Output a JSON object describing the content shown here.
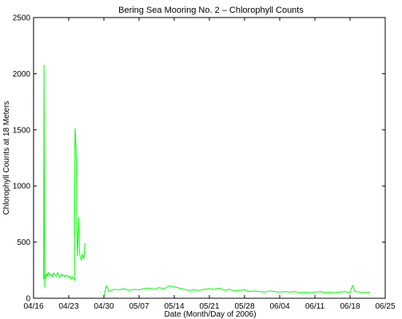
{
  "chart_data": {
    "type": "line",
    "title": "Bering Sea Mooring No. 2 – Chlorophyll Counts",
    "xlabel": "Date (Month/Day of 2006)",
    "ylabel": "Chlorophyll Counts at 18 Meters",
    "xlim": [
      "2006-04-16",
      "2006-06-25"
    ],
    "ylim": [
      0,
      2500
    ],
    "x_ticks": [
      "04/16",
      "04/23",
      "04/30",
      "05/07",
      "05/14",
      "05/21",
      "05/28",
      "06/04",
      "06/11",
      "06/18",
      "06/25"
    ],
    "y_ticks": [
      0,
      500,
      1000,
      1500,
      2000,
      2500
    ],
    "grid": false,
    "line_color": "#00ff00",
    "series": [
      {
        "segments": [
          {
            "x": [
              "2006-04-18T00:00",
              "2006-04-18T02:00",
              "2006-04-18T03:00",
              "2006-04-18T05:00",
              "2006-04-18T06:00",
              "2006-04-18T08:00",
              "2006-04-18T10:00",
              "2006-04-18T12:00",
              "2006-04-18T15:00",
              "2006-04-18T18:00",
              "2006-04-19T00:00",
              "2006-04-19T06:00",
              "2006-04-19T12:00",
              "2006-04-19T18:00",
              "2006-04-20T00:00",
              "2006-04-20T06:00",
              "2006-04-20T12:00",
              "2006-04-20T18:00",
              "2006-04-21T00:00",
              "2006-04-21T06:00",
              "2006-04-21T12:00",
              "2006-04-21T18:00",
              "2006-04-22T00:00",
              "2006-04-22T06:00",
              "2006-04-22T12:00",
              "2006-04-22T18:00",
              "2006-04-23T00:00",
              "2006-04-23T06:00",
              "2006-04-23T12:00",
              "2006-04-23T18:00",
              "2006-04-24T00:00",
              "2006-04-24T03:00",
              "2006-04-24T06:00",
              "2006-04-24T09:00",
              "2006-04-24T12:00",
              "2006-04-24T15:00",
              "2006-04-24T18:00",
              "2006-04-25T00:00",
              "2006-04-25T03:00",
              "2006-04-25T06:00",
              "2006-04-25T09:00",
              "2006-04-25T12:00",
              "2006-04-25T18:00",
              "2006-04-26T00:00",
              "2006-04-26T03:00",
              "2006-04-26T06:00"
            ],
            "y": [
              170,
              2075,
              1200,
              100,
              200,
              180,
              210,
              190,
              220,
              200,
              230,
              200,
              215,
              190,
              225,
              205,
              195,
              230,
              205,
              185,
              215,
              200,
              210,
              190,
              205,
              195,
              185,
              200,
              170,
              190,
              170,
              160,
              1510,
              1450,
              1250,
              600,
              380,
              720,
              420,
              380,
              360,
              340,
              390,
              350,
              430,
              490
            ]
          },
          {
            "x": [
              "2006-04-30T00:00",
              "2006-04-30T12:00",
              "2006-05-01T00:00",
              "2006-05-02T00:00",
              "2006-05-03T00:00",
              "2006-05-04T00:00",
              "2006-05-05T00:00",
              "2006-05-06T00:00",
              "2006-05-07T00:00",
              "2006-05-08T00:00",
              "2006-05-09T00:00",
              "2006-05-10T00:00",
              "2006-05-11T00:00",
              "2006-05-12T00:00",
              "2006-05-13T00:00",
              "2006-05-14T00:00",
              "2006-05-15T00:00",
              "2006-05-16T00:00",
              "2006-05-17T00:00",
              "2006-05-18T00:00",
              "2006-05-19T00:00",
              "2006-05-20T00:00",
              "2006-05-21T00:00",
              "2006-05-22T00:00",
              "2006-05-23T00:00",
              "2006-05-24T00:00",
              "2006-05-25T00:00",
              "2006-05-26T00:00",
              "2006-05-27T00:00",
              "2006-05-28T00:00",
              "2006-05-29T00:00",
              "2006-05-30T00:00",
              "2006-05-31T00:00",
              "2006-06-01T00:00",
              "2006-06-02T00:00",
              "2006-06-03T00:00",
              "2006-06-04T00:00",
              "2006-06-05T00:00",
              "2006-06-06T00:00",
              "2006-06-07T00:00",
              "2006-06-08T00:00",
              "2006-06-09T00:00",
              "2006-06-10T00:00",
              "2006-06-11T00:00",
              "2006-06-12T00:00",
              "2006-06-13T00:00",
              "2006-06-14T00:00",
              "2006-06-15T00:00",
              "2006-06-16T00:00",
              "2006-06-17T00:00",
              "2006-06-18T00:00",
              "2006-06-18T12:00",
              "2006-06-19T00:00",
              "2006-06-20T00:00",
              "2006-06-21T00:00",
              "2006-06-22T00:00"
            ],
            "y": [
              20,
              110,
              60,
              80,
              75,
              85,
              70,
              80,
              75,
              85,
              90,
              80,
              95,
              85,
              110,
              100,
              90,
              80,
              70,
              75,
              70,
              80,
              85,
              80,
              90,
              70,
              80,
              65,
              70,
              75,
              60,
              65,
              60,
              55,
              65,
              60,
              55,
              60,
              55,
              60,
              50,
              55,
              50,
              55,
              60,
              50,
              55,
              50,
              55,
              60,
              50,
              115,
              60,
              55,
              50,
              55
            ]
          }
        ]
      }
    ]
  }
}
